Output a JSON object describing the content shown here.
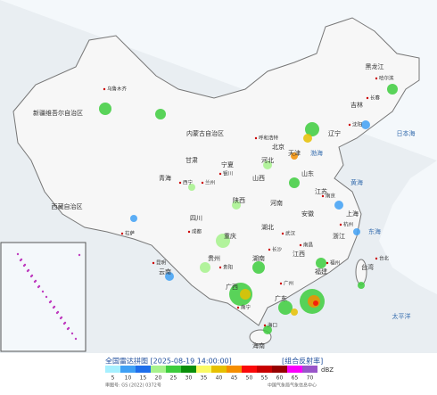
{
  "legend": {
    "title": "全国雷达拼图 [2025-08-19 14:00:00]",
    "product": "[组合反射率]",
    "unit": "dBZ",
    "ticks": [
      5,
      10,
      15,
      20,
      25,
      30,
      35,
      40,
      45,
      50,
      55,
      60,
      65,
      70
    ],
    "colors": [
      "#a6f0ff",
      "#3fa0f5",
      "#1e6eeb",
      "#a6f28c",
      "#3dcc3d",
      "#0a8f0a",
      "#fafa64",
      "#e6c000",
      "#f58e00",
      "#fa0a0a",
      "#c80000",
      "#960000",
      "#fa00fa",
      "#9955c9"
    ]
  },
  "footer": {
    "approval": "审图号: GS (2022) 0372号",
    "source": "中国气象局气象信息中心"
  },
  "regions": [
    "新疆维吾尔自治区",
    "西藏自治区",
    "青海",
    "甘肃",
    "内蒙古自治区",
    "黑龙江",
    "吉林",
    "辽宁",
    "北京",
    "天津",
    "河北",
    "山西",
    "山东",
    "河南",
    "陕西",
    "宁夏",
    "四川",
    "重庆",
    "湖北",
    "安徽",
    "江苏",
    "上海",
    "浙江",
    "江西",
    "湖南",
    "贵州",
    "云南",
    "广西",
    "广东",
    "福建",
    "台湾",
    "海南"
  ],
  "cities": [
    "乌鲁木齐",
    "拉萨",
    "哈尔滨",
    "长春",
    "沈阳",
    "呼和浩特",
    "西宁",
    "兰州",
    "银川",
    "成都",
    "武汉",
    "南京",
    "杭州",
    "长沙",
    "南昌",
    "福州",
    "广州",
    "南宁",
    "昆明",
    "贵阳",
    "海口",
    "台北"
  ],
  "seas": [
    "渤海",
    "黄海",
    "东海",
    "日本海",
    "太平洋",
    "南海"
  ]
}
